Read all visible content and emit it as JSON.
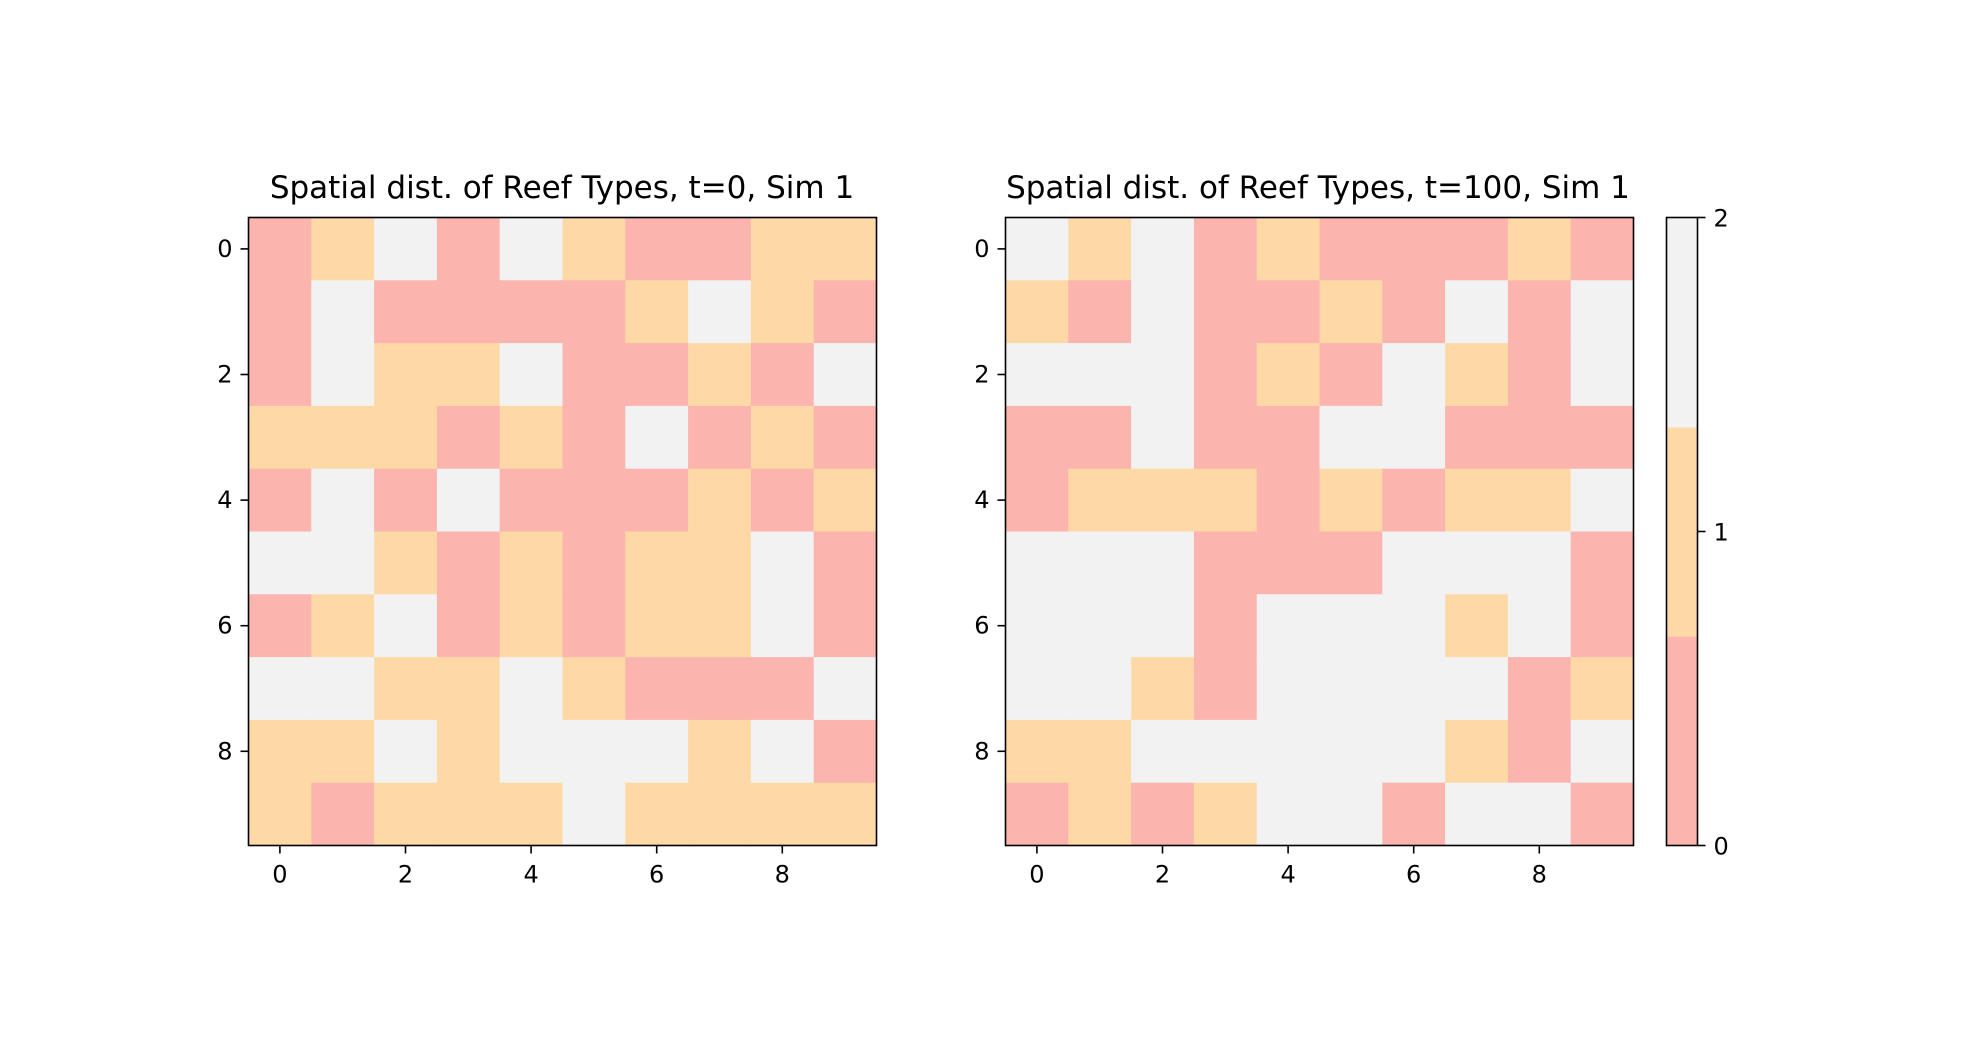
{
  "chart_data": [
    {
      "type": "heatmap",
      "title": "Spatial dist. of Reef Types, t=0, Sim 1",
      "xlabel": "",
      "ylabel": "",
      "rows": 10,
      "cols": 10,
      "x_ticks": [
        0,
        2,
        4,
        6,
        8
      ],
      "y_ticks": [
        0,
        2,
        4,
        6,
        8
      ],
      "xlim": [
        -0.5,
        9.5
      ],
      "ylim": [
        9.5,
        -0.5
      ],
      "values": [
        [
          0,
          1,
          2,
          0,
          2,
          1,
          0,
          0,
          1,
          1
        ],
        [
          0,
          2,
          0,
          0,
          0,
          0,
          1,
          2,
          1,
          0
        ],
        [
          0,
          2,
          1,
          1,
          2,
          0,
          0,
          1,
          0,
          2
        ],
        [
          1,
          1,
          1,
          0,
          1,
          0,
          2,
          0,
          1,
          0
        ],
        [
          0,
          2,
          0,
          2,
          0,
          0,
          0,
          1,
          0,
          1
        ],
        [
          2,
          2,
          1,
          0,
          1,
          0,
          1,
          1,
          2,
          0
        ],
        [
          0,
          1,
          2,
          0,
          1,
          0,
          1,
          1,
          2,
          0
        ],
        [
          2,
          2,
          1,
          1,
          2,
          1,
          0,
          0,
          0,
          2
        ],
        [
          1,
          1,
          2,
          1,
          2,
          2,
          2,
          1,
          2,
          0
        ],
        [
          1,
          0,
          1,
          1,
          1,
          2,
          1,
          1,
          1,
          1
        ]
      ]
    },
    {
      "type": "heatmap",
      "title": "Spatial dist. of Reef Types, t=100, Sim 1",
      "xlabel": "",
      "ylabel": "",
      "rows": 10,
      "cols": 10,
      "x_ticks": [
        0,
        2,
        4,
        6,
        8
      ],
      "y_ticks": [
        0,
        2,
        4,
        6,
        8
      ],
      "xlim": [
        -0.5,
        9.5
      ],
      "ylim": [
        9.5,
        -0.5
      ],
      "values": [
        [
          2,
          1,
          2,
          0,
          1,
          0,
          0,
          0,
          1,
          0
        ],
        [
          1,
          0,
          2,
          0,
          0,
          1,
          0,
          2,
          0,
          2
        ],
        [
          2,
          2,
          2,
          0,
          1,
          0,
          2,
          1,
          0,
          2
        ],
        [
          0,
          0,
          2,
          0,
          0,
          2,
          2,
          0,
          0,
          0
        ],
        [
          0,
          1,
          1,
          1,
          0,
          1,
          0,
          1,
          1,
          2
        ],
        [
          2,
          2,
          2,
          0,
          0,
          0,
          2,
          2,
          2,
          0
        ],
        [
          2,
          2,
          2,
          0,
          2,
          2,
          2,
          1,
          2,
          0
        ],
        [
          2,
          2,
          1,
          0,
          2,
          2,
          2,
          2,
          0,
          1
        ],
        [
          1,
          1,
          2,
          2,
          2,
          2,
          2,
          1,
          0,
          2
        ],
        [
          0,
          1,
          0,
          1,
          2,
          2,
          0,
          2,
          2,
          0
        ]
      ]
    }
  ],
  "colorbar": {
    "ticks": [
      0,
      1,
      2
    ],
    "range": [
      0,
      2
    ],
    "colors": [
      "#fbb4ae",
      "#fed9a6",
      "#f2f2f2"
    ]
  }
}
